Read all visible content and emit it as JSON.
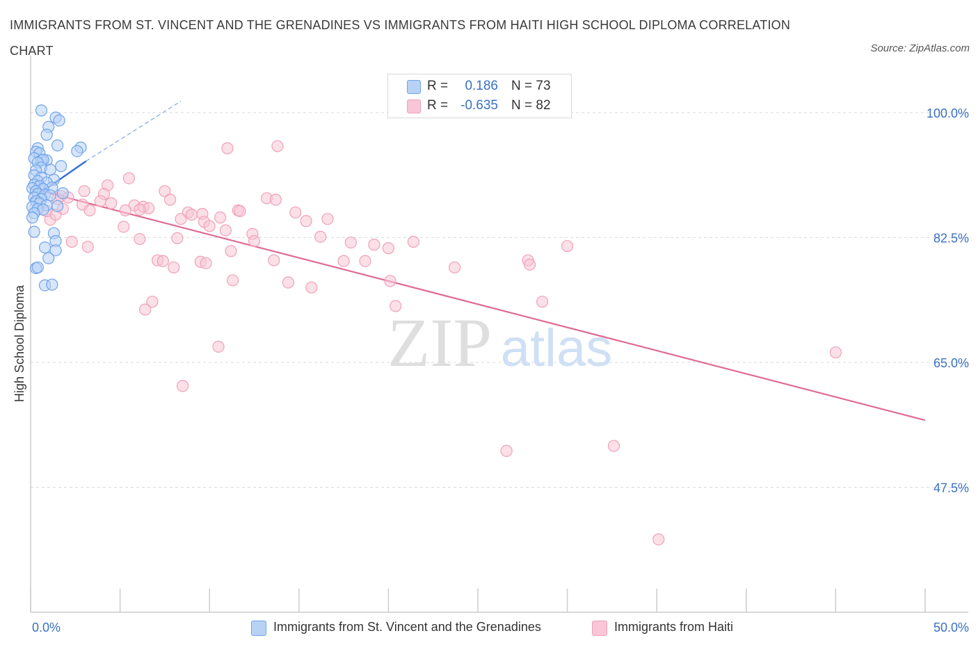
{
  "title": "IMMIGRANTS FROM ST. VINCENT AND THE GRENADINES VS IMMIGRANTS FROM HAITI HIGH SCHOOL DIPLOMA CORRELATION CHART",
  "source": "Source: ZipAtlas.com",
  "watermark": {
    "zip": "ZIP",
    "atlas": "atlas"
  },
  "legend_top": {
    "rows": [
      {
        "r_label": "R =",
        "r_value": "0.186",
        "n_label": "N = 73"
      },
      {
        "r_label": "R =",
        "r_value": "-0.635",
        "n_label": "N = 82"
      }
    ]
  },
  "chart_data": {
    "type": "scatter",
    "xlabel": "",
    "ylabel": "High School Diploma",
    "xlim": [
      0,
      50
    ],
    "ylim": [
      30,
      107
    ],
    "x_tick_labels": {
      "left": "0.0%",
      "right": "50.0%"
    },
    "y_ticks": [
      {
        "value": 100,
        "label": "100.0%"
      },
      {
        "value": 82.5,
        "label": "82.5%"
      },
      {
        "value": 65,
        "label": "65.0%"
      },
      {
        "value": 47.5,
        "label": "47.5%"
      }
    ],
    "grid": "horizontal dashed",
    "series": [
      {
        "name": "Immigrants from St. Vincent and the Grenadines",
        "color": "#6fa3ea",
        "fill": "#b8d2f5",
        "trend": {
          "x0": 0,
          "y0": 87.8,
          "x1": 3.1,
          "y1": 93.2,
          "color": "#2f6fd1"
        },
        "trend_ext": {
          "x0": 3.1,
          "y0": 93.2,
          "x1": 8.4,
          "y1": 101.6
        },
        "points": [
          [
            0.6,
            100.3
          ],
          [
            1.4,
            99.3
          ],
          [
            1.6,
            98.9
          ],
          [
            1.0,
            98.0
          ],
          [
            0.9,
            96.9
          ],
          [
            1.5,
            95.4
          ],
          [
            0.4,
            95.0
          ],
          [
            2.8,
            95.1
          ],
          [
            0.3,
            94.5
          ],
          [
            2.6,
            94.6
          ],
          [
            0.5,
            94.3
          ],
          [
            0.2,
            93.6
          ],
          [
            0.9,
            93.3
          ],
          [
            0.6,
            93.3
          ],
          [
            0.7,
            93.4
          ],
          [
            0.4,
            93.0
          ],
          [
            1.7,
            92.5
          ],
          [
            0.6,
            92.3
          ],
          [
            1.1,
            92.0
          ],
          [
            0.3,
            91.9
          ],
          [
            0.2,
            91.2
          ],
          [
            0.6,
            90.9
          ],
          [
            1.3,
            90.6
          ],
          [
            0.4,
            90.4
          ],
          [
            0.9,
            90.2
          ],
          [
            0.2,
            89.9
          ],
          [
            0.5,
            89.7
          ],
          [
            1.2,
            89.5
          ],
          [
            0.7,
            89.3
          ],
          [
            0.1,
            89.4
          ],
          [
            0.3,
            89.0
          ],
          [
            1.8,
            88.7
          ],
          [
            0.4,
            88.6
          ],
          [
            0.8,
            88.5
          ],
          [
            1.1,
            88.4
          ],
          [
            0.2,
            88.1
          ],
          [
            0.6,
            87.9
          ],
          [
            0.3,
            87.6
          ],
          [
            0.5,
            87.3
          ],
          [
            0.9,
            87.0
          ],
          [
            1.5,
            86.9
          ],
          [
            0.1,
            86.8
          ],
          [
            0.4,
            86.5
          ],
          [
            0.7,
            86.4
          ],
          [
            0.2,
            85.9
          ],
          [
            0.1,
            85.3
          ],
          [
            0.2,
            83.3
          ],
          [
            1.3,
            83.1
          ],
          [
            1.4,
            82.0
          ],
          [
            0.8,
            81.1
          ],
          [
            1.4,
            80.7
          ],
          [
            1.0,
            79.6
          ],
          [
            0.3,
            78.2
          ],
          [
            0.4,
            78.3
          ],
          [
            0.8,
            75.8
          ],
          [
            1.2,
            75.9
          ]
        ]
      },
      {
        "name": "Immigrants from Haiti",
        "color": "#f0a0b8",
        "fill": "#f8c6d6",
        "trend": {
          "x0": 0,
          "y0": 89.4,
          "x1": 50,
          "y1": 56.9,
          "color": "#e06a94"
        },
        "points": [
          [
            13.8,
            95.3
          ],
          [
            11.0,
            95.0
          ],
          [
            5.5,
            90.8
          ],
          [
            4.3,
            89.8
          ],
          [
            7.5,
            89.0
          ],
          [
            3.0,
            89.0
          ],
          [
            4.1,
            88.6
          ],
          [
            1.7,
            88.3
          ],
          [
            2.1,
            88.1
          ],
          [
            13.2,
            88.0
          ],
          [
            1.5,
            87.9
          ],
          [
            13.7,
            87.8
          ],
          [
            7.8,
            87.8
          ],
          [
            3.9,
            87.6
          ],
          [
            4.5,
            87.3
          ],
          [
            2.9,
            87.1
          ],
          [
            5.8,
            87.0
          ],
          [
            6.3,
            86.8
          ],
          [
            1.8,
            86.5
          ],
          [
            6.6,
            86.6
          ],
          [
            6.1,
            86.4
          ],
          [
            3.3,
            86.3
          ],
          [
            5.3,
            86.3
          ],
          [
            11.6,
            86.3
          ],
          [
            11.7,
            86.2
          ],
          [
            8.8,
            86.0
          ],
          [
            14.8,
            86.0
          ],
          [
            9.0,
            85.7
          ],
          [
            9.6,
            85.8
          ],
          [
            10.6,
            85.3
          ],
          [
            8.4,
            85.1
          ],
          [
            16.6,
            85.1
          ],
          [
            1.1,
            85.0
          ],
          [
            15.4,
            84.8
          ],
          [
            9.7,
            84.7
          ],
          [
            10.0,
            84.1
          ],
          [
            5.2,
            84.0
          ],
          [
            10.9,
            83.5
          ],
          [
            12.4,
            83.0
          ],
          [
            16.2,
            82.6
          ],
          [
            6.1,
            82.3
          ],
          [
            8.2,
            82.4
          ],
          [
            12.5,
            82.0
          ],
          [
            17.9,
            81.8
          ],
          [
            21.4,
            81.9
          ],
          [
            19.2,
            81.5
          ],
          [
            2.3,
            81.9
          ],
          [
            30.0,
            81.3
          ],
          [
            3.2,
            81.2
          ],
          [
            20.0,
            81.0
          ],
          [
            11.2,
            80.6
          ],
          [
            7.1,
            79.3
          ],
          [
            7.4,
            79.2
          ],
          [
            13.6,
            79.3
          ],
          [
            9.5,
            79.1
          ],
          [
            27.8,
            79.3
          ],
          [
            17.5,
            79.2
          ],
          [
            18.7,
            79.2
          ],
          [
            9.8,
            78.9
          ],
          [
            27.9,
            78.7
          ],
          [
            8.0,
            78.3
          ],
          [
            23.7,
            78.3
          ],
          [
            11.3,
            76.5
          ],
          [
            20.1,
            76.4
          ],
          [
            14.4,
            76.2
          ],
          [
            15.7,
            75.5
          ],
          [
            6.8,
            73.5
          ],
          [
            28.6,
            73.5
          ],
          [
            20.4,
            72.9
          ],
          [
            6.4,
            72.4
          ],
          [
            10.5,
            67.2
          ],
          [
            45.0,
            66.4
          ],
          [
            8.5,
            61.7
          ],
          [
            32.6,
            53.3
          ],
          [
            26.6,
            52.6
          ],
          [
            35.1,
            40.2
          ],
          [
            0.9,
            86.2
          ],
          [
            1.4,
            85.7
          ]
        ]
      }
    ]
  }
}
